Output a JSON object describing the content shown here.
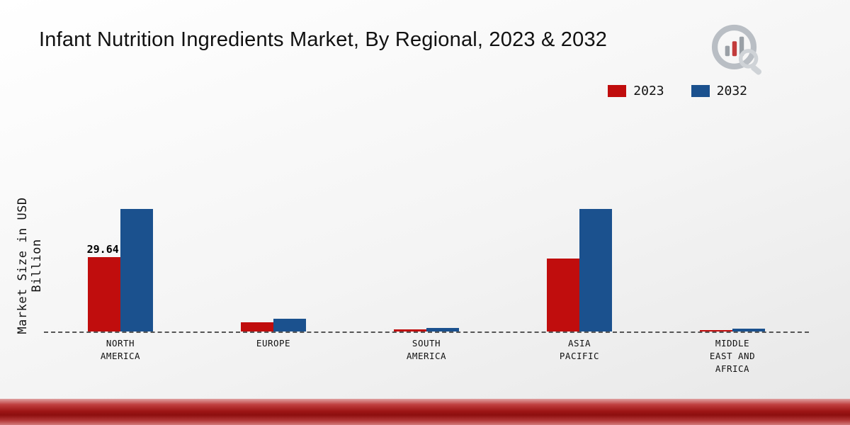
{
  "page": {
    "title": "Infant Nutrition Ingredients Market, By Regional, 2023 & 2032",
    "ylabel": "Market Size in USD Billion"
  },
  "legend": {
    "items": [
      {
        "label": "2023",
        "color": "#c00d0d"
      },
      {
        "label": "2032",
        "color": "#1b518e"
      }
    ]
  },
  "chart_data": {
    "type": "bar",
    "title": "Infant Nutrition Ingredients Market, By Regional, 2023 & 2032",
    "ylabel": "Market Size in USD Billion",
    "categories": [
      "NORTH AMERICA",
      "EUROPE",
      "SOUTH AMERICA",
      "ASIA PACIFIC",
      "MIDDLE EAST AND AFRICA"
    ],
    "series": [
      {
        "name": "2023",
        "color": "#c00d0d",
        "values": [
          29.64,
          3.8,
          0.9,
          29.0,
          0.5
        ]
      },
      {
        "name": "2032",
        "color": "#1b518e",
        "values": [
          48.9,
          5.2,
          1.5,
          48.8,
          1.2
        ]
      }
    ],
    "data_labels": [
      {
        "category": "NORTH AMERICA",
        "series": "2023",
        "text": "29.64"
      }
    ],
    "ylim": [
      0,
      55
    ],
    "grid": false,
    "baseline_style": "dashed",
    "legend_position": "top-right"
  },
  "colors": {
    "series_2023": "#c00d0d",
    "series_2032": "#1b518e",
    "background_top": "#ffffff",
    "background_bottom": "#e7e7e7",
    "ribbon_dark_red": "#8d0f0f",
    "logo_gray": "#9aa0a6",
    "logo_red": "#c23b3b"
  }
}
